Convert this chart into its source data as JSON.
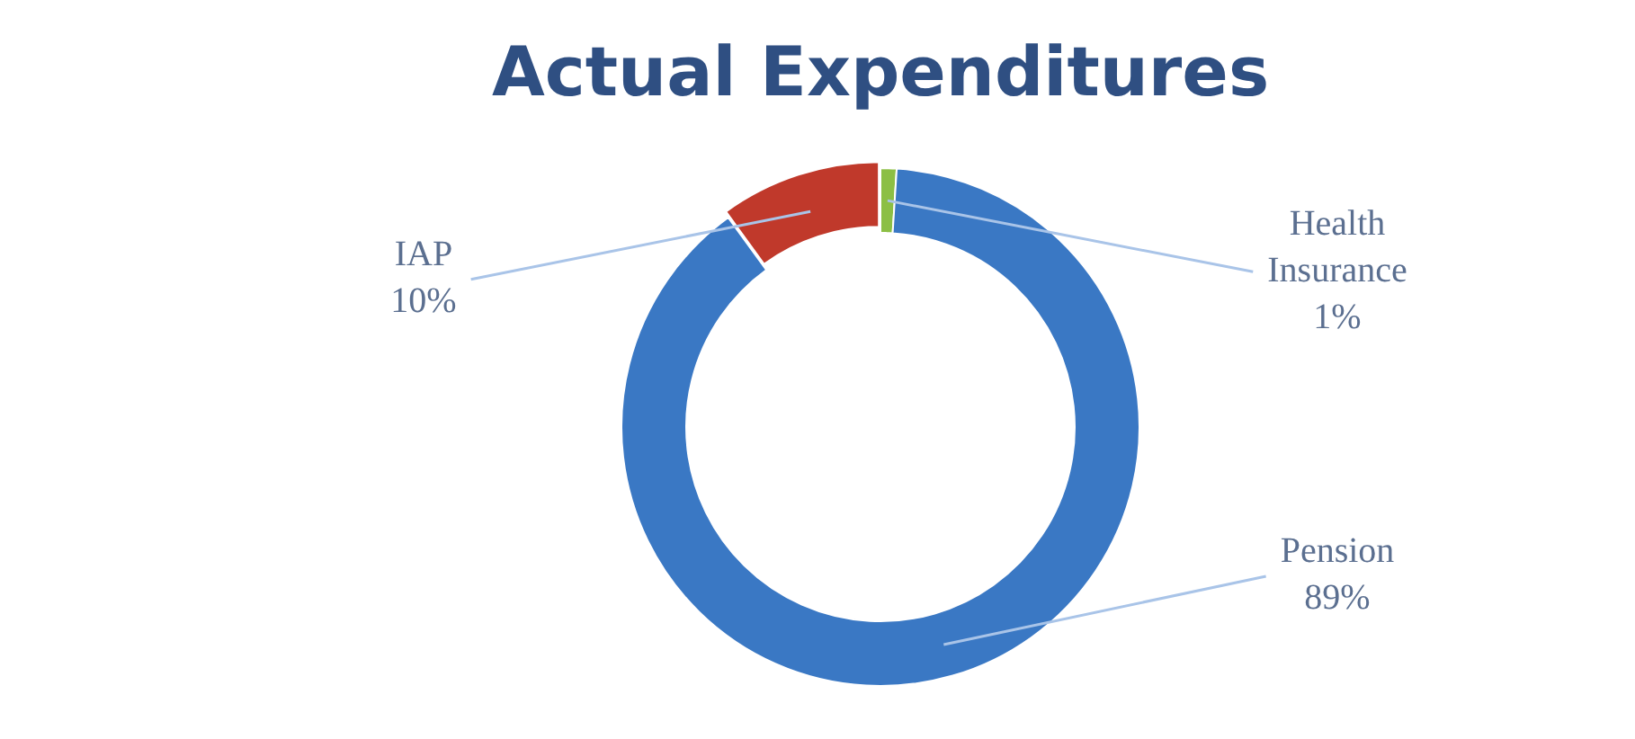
{
  "chart_data": {
    "type": "donut",
    "title": "Actual Expenditures",
    "categories": [
      "Health Insurance",
      "Pension",
      "IAP"
    ],
    "values": [
      1,
      89,
      10
    ],
    "colors": [
      "#8cbf45",
      "#3a78c4",
      "#c0392b"
    ],
    "value_labels": [
      "1%",
      "89%",
      "10%"
    ],
    "legend": false
  }
}
